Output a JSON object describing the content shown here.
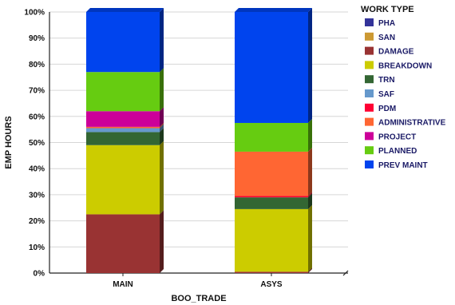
{
  "chart_data": {
    "type": "bar",
    "stacked": true,
    "percent_stacked": true,
    "xlabel": "BOO_TRADE",
    "ylabel": "EMP HOURS",
    "ylim": [
      0,
      100
    ],
    "y_ticks": [
      "0%",
      "10%",
      "20%",
      "30%",
      "40%",
      "50%",
      "60%",
      "70%",
      "80%",
      "90%",
      "100%"
    ],
    "grid": true,
    "legend_title": "WORK TYPE",
    "legend_position": "right",
    "categories": [
      "MAIN",
      "ASYS"
    ],
    "series": [
      {
        "name": "PHA",
        "color": "#33339a",
        "values": [
          0,
          0
        ]
      },
      {
        "name": "SAN",
        "color": "#cc9933",
        "values": [
          0,
          0
        ]
      },
      {
        "name": "DAMAGE",
        "color": "#993333",
        "values": [
          22.5,
          0.5
        ]
      },
      {
        "name": "BREAKDOWN",
        "color": "#cccc00",
        "values": [
          26.5,
          24
        ]
      },
      {
        "name": "TRN",
        "color": "#336633",
        "values": [
          5,
          4.5
        ]
      },
      {
        "name": "SAF",
        "color": "#6699cc",
        "values": [
          1.5,
          0
        ]
      },
      {
        "name": "PDM",
        "color": "#ff0033",
        "values": [
          0,
          0.5
        ]
      },
      {
        "name": "ADMINISTRATIVE",
        "color": "#ff6633",
        "values": [
          0.5,
          17
        ]
      },
      {
        "name": "PROJECT",
        "color": "#cc0099",
        "values": [
          6,
          0
        ]
      },
      {
        "name": "PLANNED",
        "color": "#66cc11",
        "values": [
          15,
          11
        ]
      },
      {
        "name": "PREV MAINT",
        "color": "#0044ee",
        "values": [
          23,
          42.5
        ]
      }
    ]
  }
}
